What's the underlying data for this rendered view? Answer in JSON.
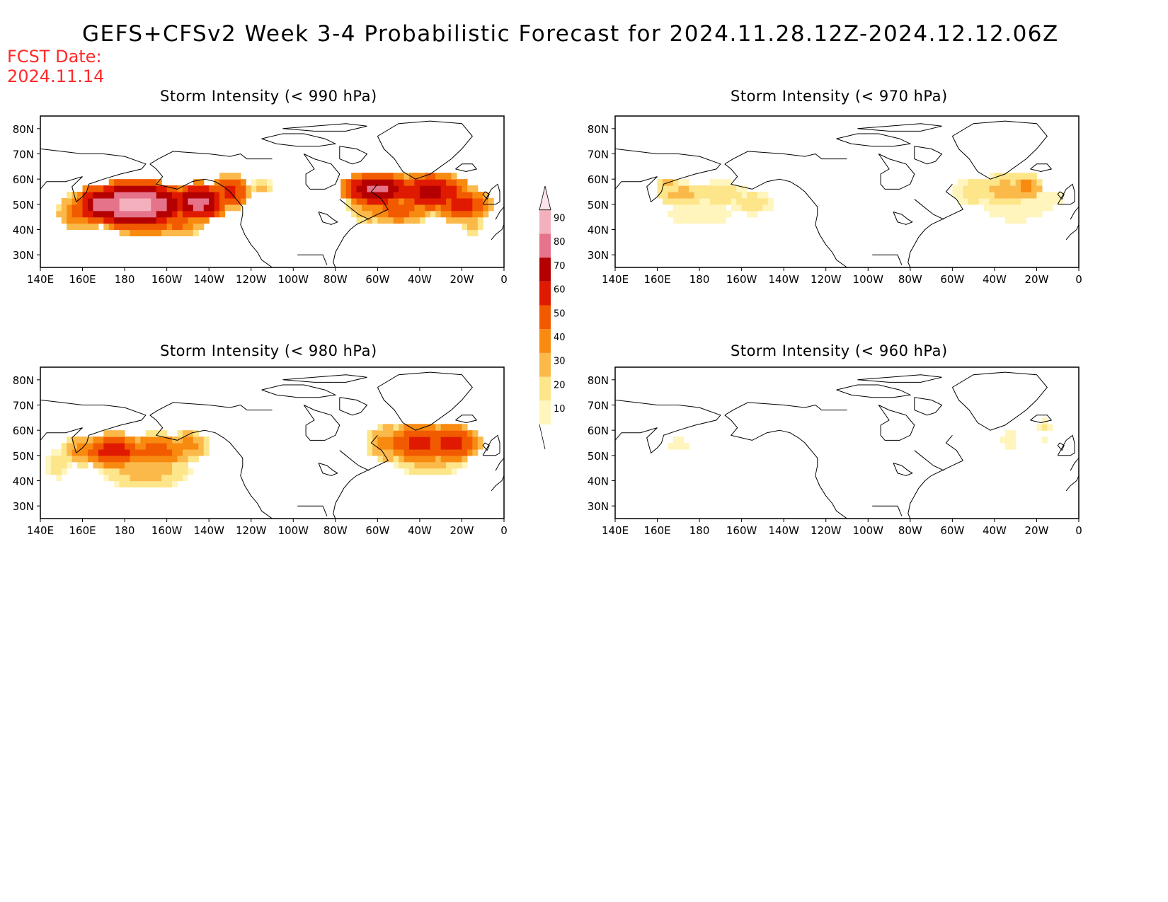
{
  "title": "GEFS+CFSv2 Week 3-4 Probabilistic Forecast for 2024.11.28.12Z-2024.12.12.06Z",
  "fcst_date_label": "FCST Date:",
  "fcst_date": "2024.11.14",
  "axes": {
    "lat_ticks": [
      "80N",
      "70N",
      "60N",
      "50N",
      "40N",
      "30N"
    ],
    "lon_ticks": [
      "140E",
      "160E",
      "180",
      "160W",
      "140W",
      "120W",
      "100W",
      "80W",
      "60W",
      "40W",
      "20W",
      "0"
    ]
  },
  "colorbar": {
    "levels": [
      "10",
      "20",
      "30",
      "40",
      "50",
      "60",
      "70",
      "80",
      "90"
    ],
    "colors": [
      "#fff5bd",
      "#fde58a",
      "#fbb94a",
      "#f88a10",
      "#f25a00",
      "#e01a00",
      "#b40000",
      "#e5738a",
      "#f4b0bd",
      "#fde4ea"
    ]
  },
  "panels": [
    {
      "id": "p990",
      "title": "Storm Intensity (< 990 hPa)",
      "intensity": "high"
    },
    {
      "id": "p980",
      "title": "Storm Intensity (< 980 hPa)",
      "intensity": "medium"
    },
    {
      "id": "p970",
      "title": "Storm Intensity (< 970 hPa)",
      "intensity": "low"
    },
    {
      "id": "p960",
      "title": "Storm Intensity (< 960 hPa)",
      "intensity": "verylow"
    }
  ]
}
